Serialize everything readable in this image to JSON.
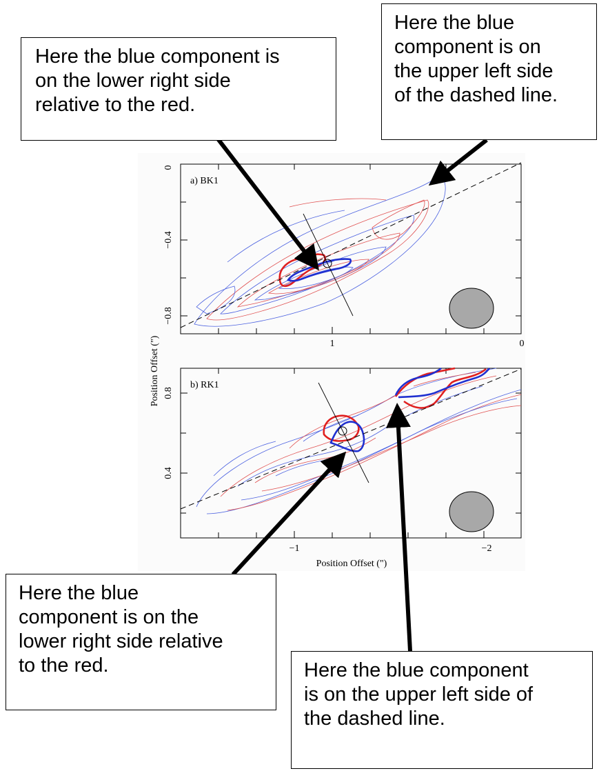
{
  "callouts": {
    "top_left": "Here the blue component is\non the lower right side\nrelative to the red.",
    "top_right": "Here the blue\ncomponent is on\nthe upper left side\nof the dashed line.",
    "bottom_left": "Here the blue\ncomponent is on the\nlower right side relative\nto the red.",
    "bottom_right": "Here the blue component\nis on the upper left side of\nthe dashed line."
  },
  "panels": {
    "a": {
      "label": "a) BK1",
      "y_ticks": [
        "0",
        "−0.4",
        "−0.8"
      ],
      "x_ticks": [
        "1",
        "0"
      ]
    },
    "b": {
      "label": "b) RK1",
      "y_ticks": [
        "0.8",
        "0.4"
      ],
      "x_ticks": [
        "−1",
        "−2"
      ]
    }
  },
  "axes": {
    "y_label": "Position Offset (\")",
    "x_label": "Position Offset (\")"
  },
  "colors": {
    "red": "#e02020",
    "blue": "#2030d0",
    "beam": "#a8a8a8"
  }
}
